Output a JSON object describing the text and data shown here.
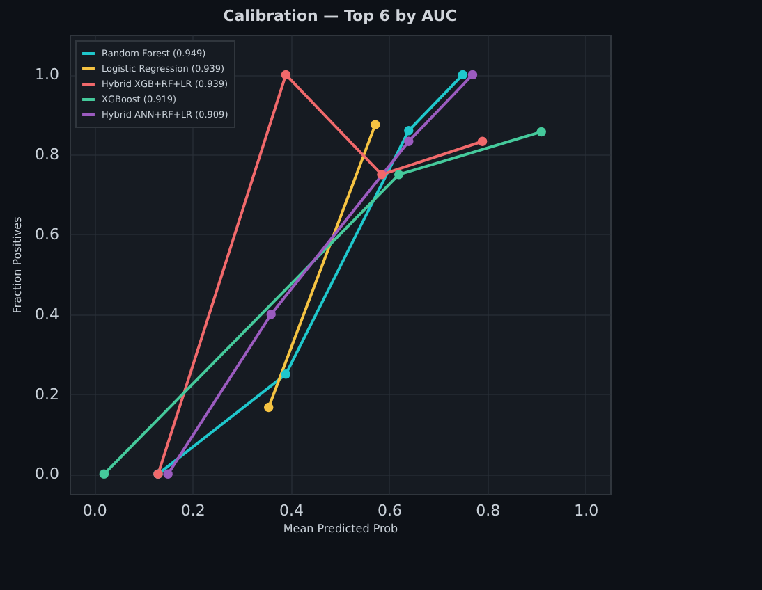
{
  "chart_data": {
    "type": "line",
    "title": "Calibration — Top 6 by AUC",
    "xlabel": "Mean Predicted Prob",
    "ylabel": "Fraction Positives",
    "xlim": [
      -0.05,
      1.05
    ],
    "ylim": [
      -0.05,
      1.1
    ],
    "xticks": [
      {
        "value": 0,
        "label": "0.0"
      },
      0.2,
      0.4,
      0.6,
      0.8,
      {
        "value": 1,
        "label": "1.0"
      }
    ],
    "yticks": [
      {
        "value": 0,
        "label": "0.0"
      },
      0.2,
      0.4,
      0.6,
      0.8,
      {
        "value": 1,
        "label": "1.0"
      }
    ],
    "grid": true,
    "legend": "top left",
    "marker": "circle",
    "line_style": "solid",
    "series": [
      {
        "name": "Random Forest (0.949)",
        "color": "#1fc7cc",
        "x": [
          0.13,
          0.39,
          0.64,
          0.75
        ],
        "values": [
          0,
          0.25,
          0.86,
          1.0
        ]
      },
      {
        "name": "Logistic Regression (0.939)",
        "color": "#f5c342",
        "x": [
          0.355,
          0.572
        ],
        "values": [
          0.167,
          0.875
        ]
      },
      {
        "name": "Hybrid XGB+RF+LR (0.939)",
        "color": "#f0696b",
        "x": [
          0.13,
          0.39,
          0.585,
          0.79
        ],
        "values": [
          0,
          1.0,
          0.75,
          0.833
        ]
      },
      {
        "name": "XGBoost (0.919)",
        "color": "#45c99b",
        "x": [
          0.02,
          0.62,
          0.91
        ],
        "values": [
          0,
          0.75,
          0.857
        ]
      },
      {
        "name": "Hybrid ANN+RF+LR (0.909)",
        "color": "#9b5bbf",
        "x": [
          0.15,
          0.36,
          0.64,
          0.77
        ],
        "values": [
          0,
          0.4,
          0.833,
          1.0
        ]
      }
    ]
  }
}
